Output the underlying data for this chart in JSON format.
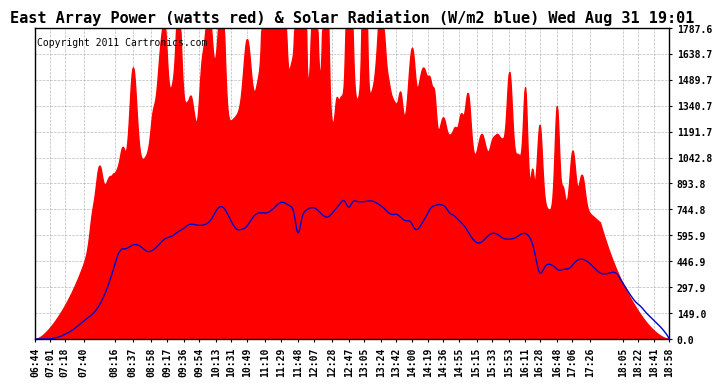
{
  "title": "East Array Power (watts red) & Solar Radiation (W/m2 blue) Wed Aug 31 19:01",
  "copyright": "Copyright 2011 Cartronics.com",
  "ymin": 0.0,
  "ymax": 1787.6,
  "yticks": [
    0.0,
    149.0,
    297.9,
    446.9,
    595.9,
    744.8,
    893.8,
    1042.8,
    1191.7,
    1340.7,
    1489.7,
    1638.7,
    1787.6
  ],
  "ytick_labels": [
    "0.0",
    "149.0",
    "297.9",
    "446.9",
    "595.9",
    "744.8",
    "893.8",
    "1042.8",
    "1191.7",
    "1340.7",
    "1489.7",
    "1638.7",
    "1787.6"
  ],
  "x_labels": [
    "06:44",
    "07:01",
    "07:18",
    "07:40",
    "08:16",
    "08:37",
    "08:58",
    "09:17",
    "09:36",
    "09:54",
    "10:13",
    "10:31",
    "10:49",
    "11:10",
    "11:29",
    "11:48",
    "12:07",
    "12:28",
    "12:47",
    "13:05",
    "13:24",
    "13:42",
    "14:00",
    "14:19",
    "14:36",
    "14:55",
    "15:15",
    "15:33",
    "15:53",
    "16:11",
    "16:28",
    "16:48",
    "17:06",
    "17:26",
    "18:05",
    "18:22",
    "18:41",
    "18:58"
  ],
  "background_color": "#ffffff",
  "plot_bg_color": "#ffffff",
  "grid_color": "#aaaaaa",
  "red_color": "#ff0000",
  "blue_color": "#0000cc",
  "title_fontsize": 11,
  "tick_fontsize": 7,
  "copyright_fontsize": 7
}
